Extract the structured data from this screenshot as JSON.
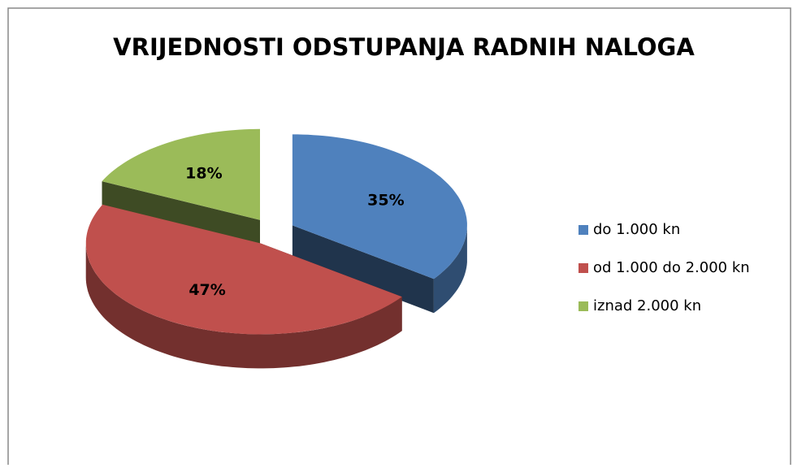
{
  "chart_data": {
    "type": "pie",
    "title": "VRIJEDNOSTI ODSTUPANJA RADNIH NALOGA",
    "categories": [
      "do 1.000 kn",
      "od 1.000 do 2.000 kn",
      "iznad 2.000 kn"
    ],
    "values": [
      35,
      47,
      18
    ],
    "value_labels": [
      "35%",
      "47%",
      "18%"
    ],
    "colors": [
      "#4f81bd",
      "#c0504d",
      "#9bbb59"
    ],
    "legend": "right"
  }
}
